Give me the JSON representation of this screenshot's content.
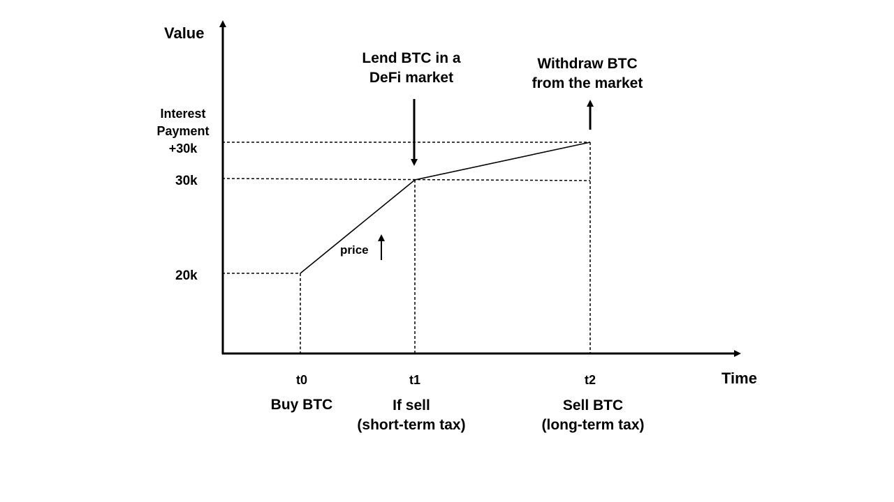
{
  "axes": {
    "y_label": "Value",
    "x_label": "Time"
  },
  "y_ticks": {
    "interest": "Interest\nPayment\n+30k",
    "v30k": "30k",
    "v20k": "20k"
  },
  "x_ticks": {
    "t0": "t0",
    "t1": "t1",
    "t2": "t2"
  },
  "events": {
    "t0": "Buy BTC",
    "t1": "If sell\n(short-term tax)",
    "t2": "Sell BTC\n(long-term tax)"
  },
  "annotations": {
    "lend": "Lend BTC in a\nDeFi market",
    "withdraw": "Withdraw BTC\nfrom the market",
    "price": "price"
  },
  "colors": {
    "ink": "#000000",
    "background": "#ffffff"
  }
}
